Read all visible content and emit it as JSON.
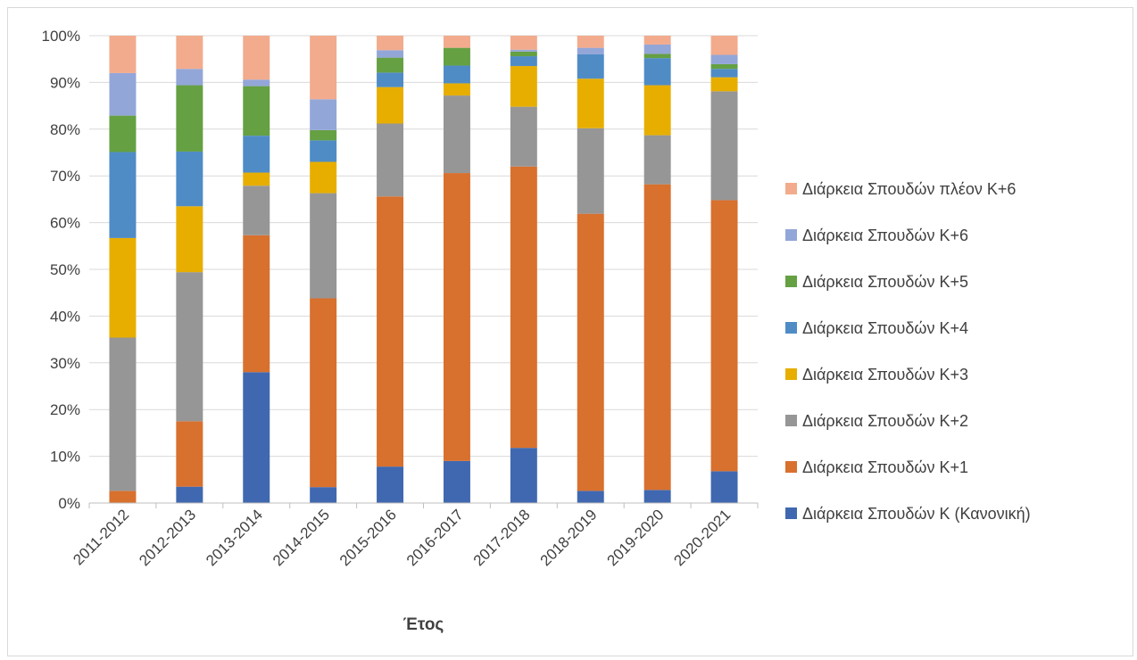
{
  "chart_data": {
    "type": "bar",
    "stacked": true,
    "percent_stacked": true,
    "title": "",
    "xlabel": "Έτος",
    "ylabel": "",
    "ylim": [
      0,
      100
    ],
    "y_ticks": [
      "0%",
      "10%",
      "20%",
      "30%",
      "40%",
      "50%",
      "60%",
      "70%",
      "80%",
      "90%",
      "100%"
    ],
    "grid": true,
    "legend_position": "right",
    "categories": [
      "2011-2012",
      "2012-2013",
      "2013-2014",
      "2014-2015",
      "2015-2016",
      "2016-2017",
      "2017-2018",
      "2018-2019",
      "2019-2020",
      "2020-2021"
    ],
    "series": [
      {
        "name": "Διάρκεια Σπουδών Κ (Κανονική)",
        "color": "#4068b0",
        "values": [
          0,
          3.5,
          28,
          3.4,
          7.8,
          9.0,
          11.8,
          2.6,
          2.8,
          6.8
        ]
      },
      {
        "name": "Διάρκεια Σπουδών Κ+1",
        "color": "#d8702e",
        "values": [
          2.6,
          14,
          29.3,
          40.4,
          57.8,
          61.6,
          60.2,
          59.3,
          65.4,
          58
        ]
      },
      {
        "name": "Διάρκεια Σπουδών Κ+2",
        "color": "#969696",
        "values": [
          32.8,
          31.9,
          10.6,
          22.5,
          15.6,
          16.6,
          12.8,
          18.3,
          10.5,
          23.3
        ]
      },
      {
        "name": "Διάρκεια Σπουδών Κ+3",
        "color": "#e7ae00",
        "values": [
          21.3,
          14.1,
          2.8,
          6.7,
          7.8,
          2.6,
          8.7,
          10.6,
          10.7,
          3.0
        ]
      },
      {
        "name": "Διάρκεια Σπουδών Κ+4",
        "color": "#4f8cc6",
        "values": [
          18.4,
          11.7,
          7.9,
          4.6,
          3.1,
          3.8,
          2.1,
          5.2,
          5.8,
          1.8
        ]
      },
      {
        "name": "Διάρκεια Σπουδών Κ+5",
        "color": "#65a043",
        "values": [
          7.8,
          14.2,
          10.6,
          2.2,
          3.2,
          3.8,
          1.0,
          0,
          0.9,
          1.0
        ]
      },
      {
        "name": "Διάρκεια Σπουδών Κ+6",
        "color": "#93a6d8",
        "values": [
          9.1,
          3.5,
          1.4,
          6.6,
          1.6,
          0,
          0.4,
          1.4,
          2.0,
          2.0
        ]
      },
      {
        "name": "Διάρκεια Σπουδών πλέον Κ+6",
        "color": "#f2ab8d",
        "values": [
          8.0,
          7.1,
          9.4,
          13.6,
          3.1,
          2.6,
          3.0,
          2.6,
          1.9,
          4.1
        ]
      }
    ]
  }
}
